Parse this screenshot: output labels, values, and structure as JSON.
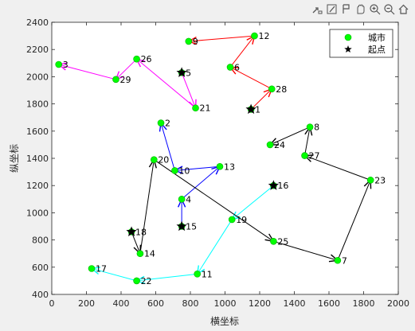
{
  "toolbar": {
    "buttons": [
      {
        "name": "export-icon"
      },
      {
        "name": "brush-icon"
      },
      {
        "name": "datatip-icon"
      },
      {
        "name": "pan-icon"
      },
      {
        "name": "zoom-in-icon"
      },
      {
        "name": "zoom-out-icon"
      },
      {
        "name": "home-icon"
      }
    ]
  },
  "chart_data": {
    "type": "scatter",
    "title": "",
    "xlabel": "横坐标",
    "ylabel": "纵坐标",
    "xlim": [
      0,
      2000
    ],
    "ylim": [
      400,
      2400
    ],
    "xticks": [
      0,
      200,
      400,
      600,
      800,
      1000,
      1200,
      1400,
      1600,
      1800,
      2000
    ],
    "yticks": [
      400,
      600,
      800,
      1000,
      1200,
      1400,
      1600,
      1800,
      2000,
      2200,
      2400
    ],
    "grid": false,
    "legend": {
      "position": "top-right",
      "entries": [
        {
          "label": "城市",
          "marker": "circle",
          "color": "#00ff00"
        },
        {
          "label": "起点",
          "marker": "pentagram",
          "color": "#000000"
        }
      ]
    },
    "cities": [
      {
        "id": 1,
        "x": 1150,
        "y": 1760
      },
      {
        "id": 2,
        "x": 630,
        "y": 1660
      },
      {
        "id": 3,
        "x": 40,
        "y": 2090
      },
      {
        "id": 4,
        "x": 750,
        "y": 1100
      },
      {
        "id": 5,
        "x": 750,
        "y": 2030
      },
      {
        "id": 6,
        "x": 1030,
        "y": 2070
      },
      {
        "id": 7,
        "x": 1650,
        "y": 650
      },
      {
        "id": 8,
        "x": 1490,
        "y": 1630
      },
      {
        "id": 9,
        "x": 790,
        "y": 2260
      },
      {
        "id": 10,
        "x": 710,
        "y": 1310
      },
      {
        "id": 11,
        "x": 840,
        "y": 550
      },
      {
        "id": 12,
        "x": 1170,
        "y": 2300
      },
      {
        "id": 13,
        "x": 970,
        "y": 1340
      },
      {
        "id": 14,
        "x": 510,
        "y": 700
      },
      {
        "id": 15,
        "x": 750,
        "y": 900
      },
      {
        "id": 16,
        "x": 1280,
        "y": 1200
      },
      {
        "id": 17,
        "x": 230,
        "y": 590
      },
      {
        "id": 18,
        "x": 460,
        "y": 860
      },
      {
        "id": 19,
        "x": 1040,
        "y": 950
      },
      {
        "id": 20,
        "x": 590,
        "y": 1390
      },
      {
        "id": 21,
        "x": 830,
        "y": 1770
      },
      {
        "id": 22,
        "x": 490,
        "y": 500
      },
      {
        "id": 23,
        "x": 1840,
        "y": 1240
      },
      {
        "id": 24,
        "x": 1260,
        "y": 1500
      },
      {
        "id": 25,
        "x": 1280,
        "y": 790
      },
      {
        "id": 26,
        "x": 490,
        "y": 2130
      },
      {
        "id": 27,
        "x": 1460,
        "y": 1420
      },
      {
        "id": 28,
        "x": 1270,
        "y": 1910
      },
      {
        "id": 29,
        "x": 370,
        "y": 1980
      }
    ],
    "start_points": [
      1,
      5,
      15,
      16,
      18
    ],
    "series": [
      {
        "color": "#ff0000",
        "path": [
          1,
          28,
          6,
          12,
          9
        ]
      },
      {
        "color": "#ff00ff",
        "path": [
          5,
          21,
          26,
          29,
          3
        ]
      },
      {
        "color": "#0000ff",
        "path": [
          15,
          4,
          13,
          10,
          2
        ]
      },
      {
        "color": "#00ffff",
        "path": [
          16,
          19,
          11,
          22,
          17
        ]
      },
      {
        "color": "#000000",
        "path": [
          18,
          14,
          20,
          25,
          7,
          23,
          27,
          8,
          24
        ]
      }
    ]
  }
}
